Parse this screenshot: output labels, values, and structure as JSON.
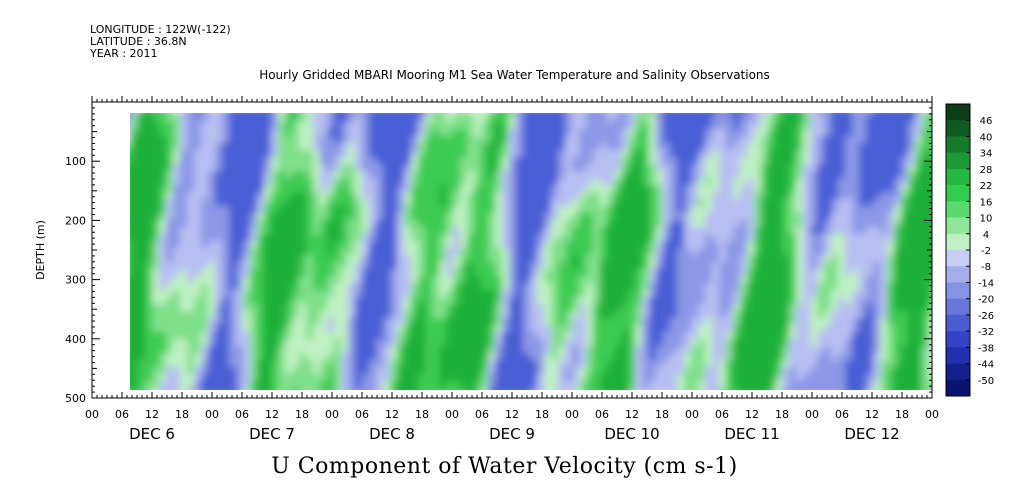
{
  "header": {
    "longitude": "LONGITUDE : 122W(-122)",
    "latitude": "LATITUDE : 36.8N",
    "year": "YEAR : 2011"
  },
  "chart_data": {
    "type": "heatmap",
    "title": "Hourly Gridded MBARI Mooring M1 Sea Water Temperature and Salinity Observations",
    "xlabel": "U Component of Water Velocity (cm s-1)",
    "ylabel": "DEPTH (m)",
    "ylim": [
      500,
      0
    ],
    "yticks": [
      100,
      200,
      300,
      400,
      500
    ],
    "ytick_labels": [
      "100",
      "200",
      "300",
      "400",
      "500"
    ],
    "x_hour_labels": [
      "00",
      "06",
      "12",
      "18",
      "00",
      "06",
      "12",
      "18",
      "00",
      "06",
      "12",
      "18",
      "00",
      "06",
      "12",
      "18",
      "00",
      "06",
      "12",
      "18",
      "00",
      "06",
      "12",
      "18",
      "00",
      "06",
      "12",
      "18",
      "00"
    ],
    "x_day_labels": [
      "DEC 6",
      "DEC 7",
      "DEC 8",
      "DEC 9",
      "DEC 10",
      "DEC 11",
      "DEC 12"
    ],
    "colorbar": {
      "labels": [
        "46",
        "40",
        "34",
        "28",
        "22",
        "16",
        "10",
        "4",
        "-2",
        "-8",
        "-14",
        "-20",
        "-26",
        "-32",
        "-38",
        "-44",
        "-50"
      ],
      "colors": [
        "#0b3d16",
        "#0f5a20",
        "#157a2a",
        "#1c9a36",
        "#24b842",
        "#30cc4d",
        "#5ada6e",
        "#8ee698",
        "#bff0c2",
        "#c7cdf3",
        "#a4aeeb",
        "#8693e4",
        "#6676dc",
        "#4a5cd2",
        "#3344c6",
        "#2230b0",
        "#14208e",
        "#0a1470"
      ]
    }
  }
}
